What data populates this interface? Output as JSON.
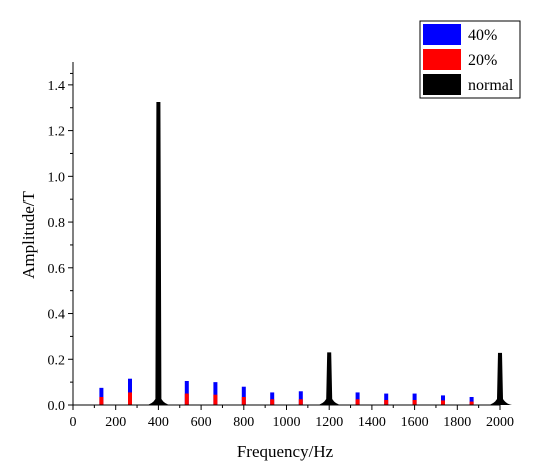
{
  "colors": {
    "s40": "#0000ff",
    "s20": "#ff0000",
    "normal": "#000000"
  },
  "chart_data": {
    "type": "bar",
    "xlabel": "Frequency/Hz",
    "ylabel": "Amplitude/T",
    "xlim": [
      0,
      2000
    ],
    "ylim": [
      0,
      1.5
    ],
    "x_ticks": [
      0,
      200,
      400,
      600,
      800,
      1000,
      1200,
      1400,
      1600,
      1800,
      2000
    ],
    "y_ticks": [
      0.0,
      0.2,
      0.4,
      0.6,
      0.8,
      1.0,
      1.2,
      1.4
    ],
    "x_tick_labels": [
      "0",
      "200",
      "400",
      "600",
      "800",
      "1000",
      "1200",
      "1400",
      "1600",
      "1800",
      "2000"
    ],
    "y_tick_labels": [
      "0.0",
      "0.2",
      "0.4",
      "0.6",
      "0.8",
      "1.0",
      "1.2",
      "1.4"
    ],
    "legend_position": "top-right",
    "grid": false,
    "series": [
      {
        "name": "40%",
        "color": "#0000ff",
        "x": [
          133,
          267,
          400,
          533,
          667,
          800,
          933,
          1067,
          1200,
          1333,
          1467,
          1600,
          1733,
          1867,
          2000
        ],
        "values": [
          0.075,
          0.115,
          0.02,
          0.105,
          0.1,
          0.08,
          0.055,
          0.06,
          0.015,
          0.055,
          0.05,
          0.05,
          0.042,
          0.035,
          0.02
        ]
      },
      {
        "name": "20%",
        "color": "#ff0000",
        "x": [
          133,
          267,
          400,
          533,
          667,
          800,
          933,
          1067,
          1200,
          1333,
          1467,
          1600,
          1733,
          1867,
          2000
        ],
        "values": [
          0.035,
          0.055,
          0.015,
          0.05,
          0.045,
          0.035,
          0.025,
          0.025,
          0.01,
          0.025,
          0.022,
          0.022,
          0.02,
          0.015,
          0.01
        ]
      },
      {
        "name": "normal",
        "color": "#000000",
        "x": [
          400,
          1200,
          2000
        ],
        "values": [
          1.325,
          0.23,
          0.228
        ]
      }
    ]
  }
}
